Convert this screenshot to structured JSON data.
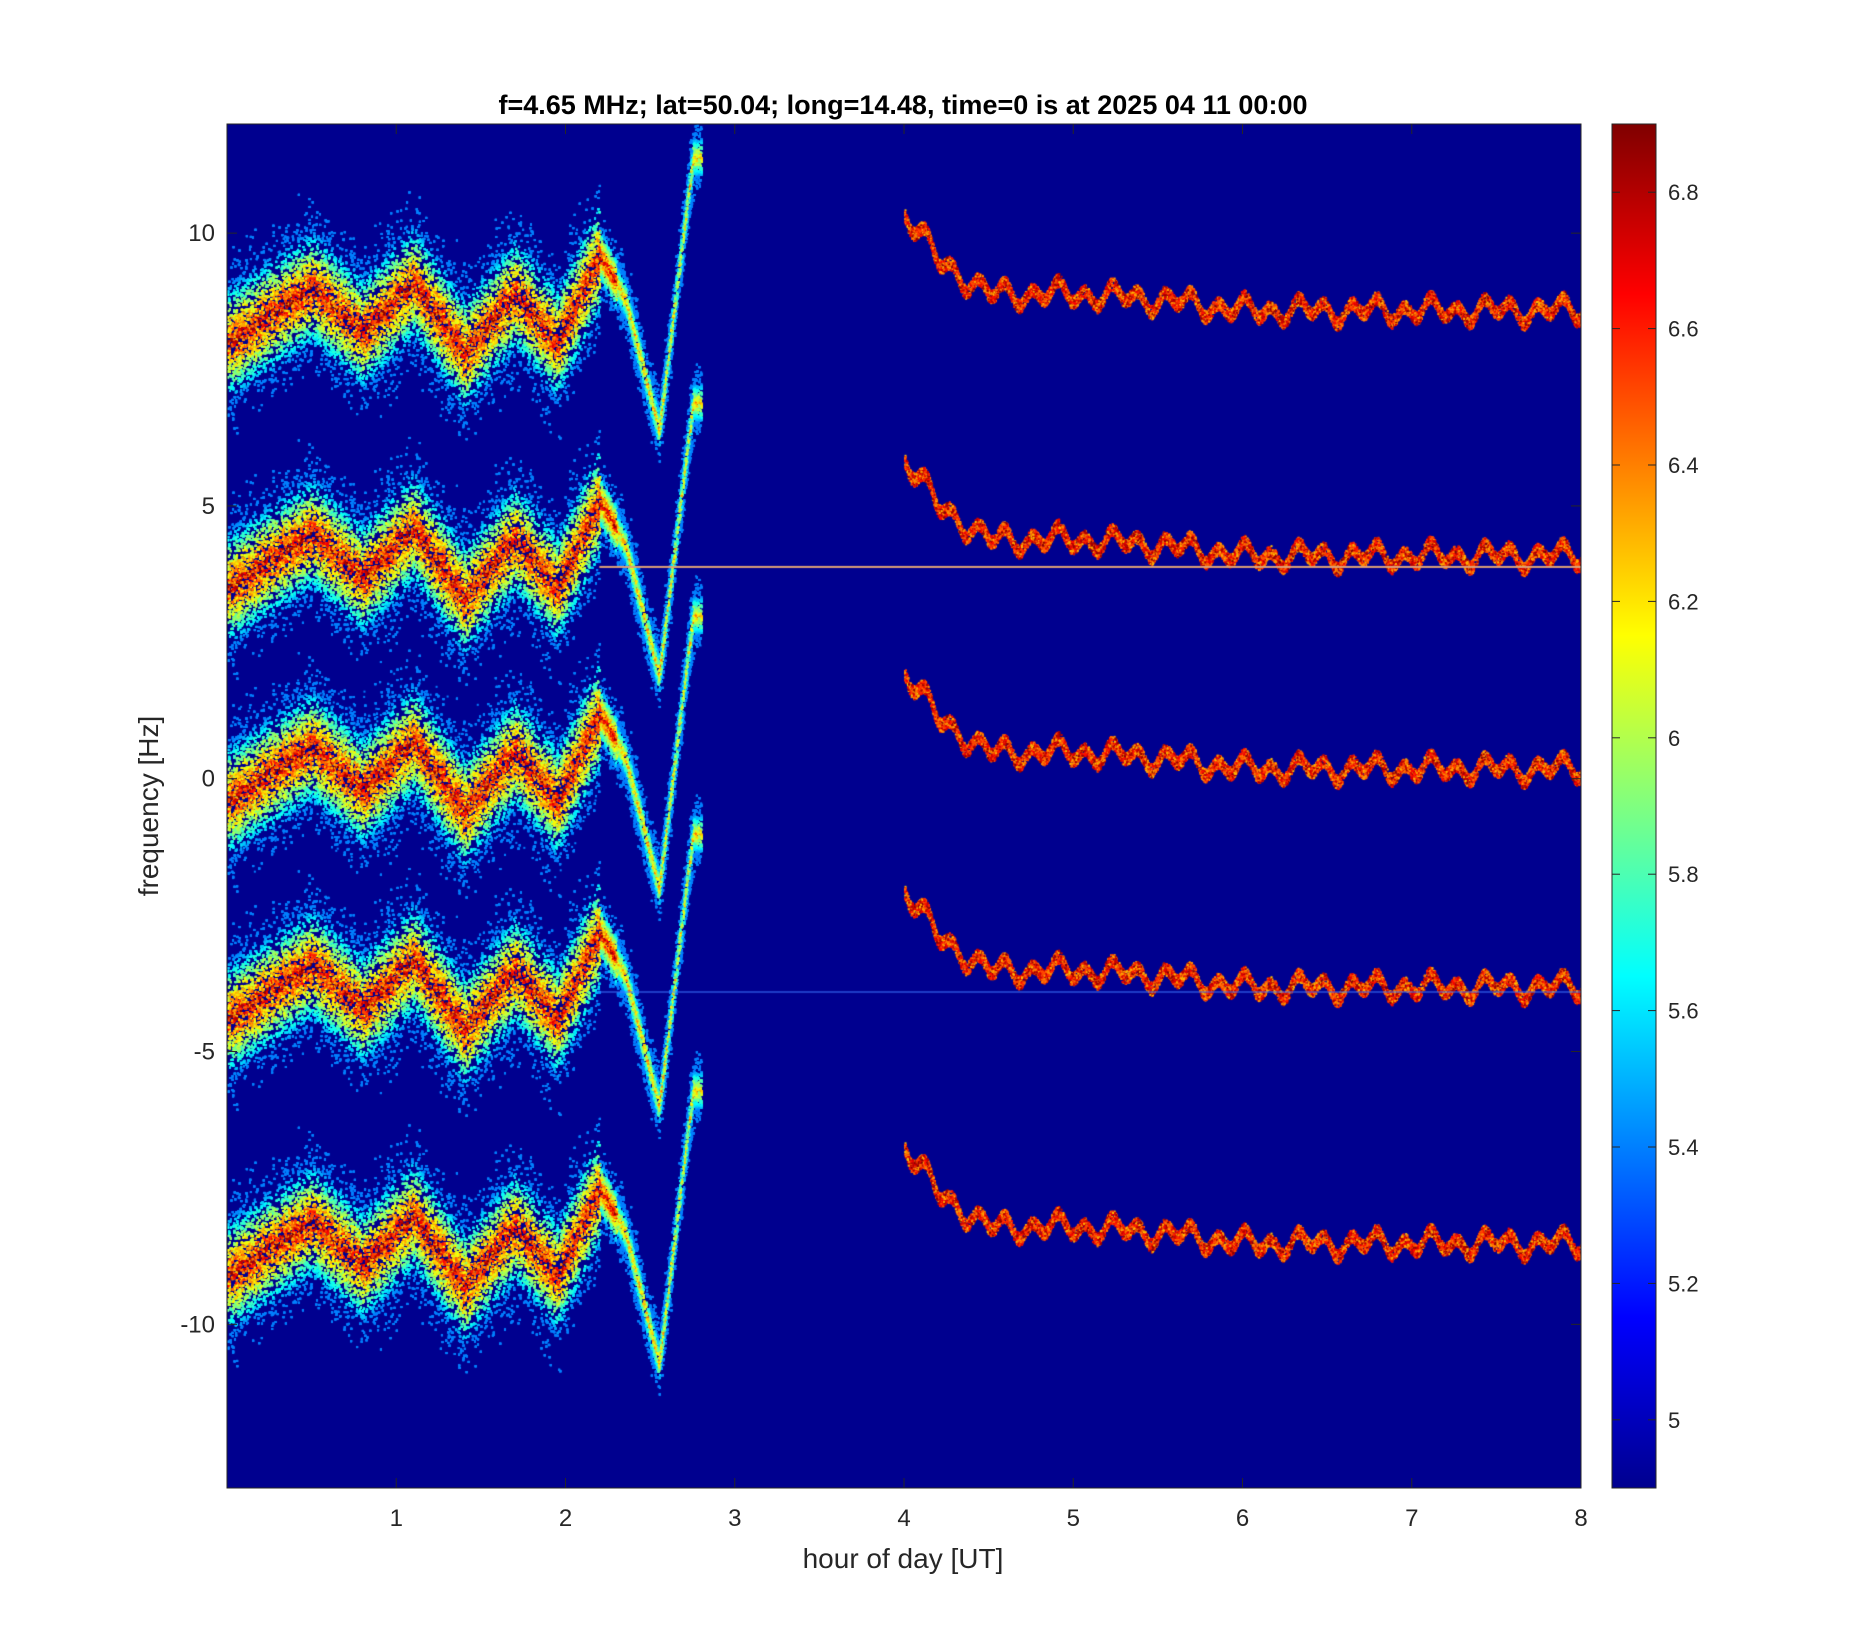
{
  "chart_data": {
    "type": "heatmap",
    "title": "f=4.65 MHz;  lat=50.04; long=14.48, time=0 is at 2025 04 11 00:00",
    "xlabel": "hour of day [UT]",
    "ylabel": "frequency [Hz]",
    "xlim": [
      0,
      8
    ],
    "ylim": [
      -13,
      12
    ],
    "xticks": [
      1,
      2,
      3,
      4,
      5,
      6,
      7,
      8
    ],
    "xtick_labels": [
      "1",
      "2",
      "3",
      "4",
      "5",
      "6",
      "7",
      "8"
    ],
    "yticks": [
      10,
      5,
      0,
      -5,
      -10
    ],
    "ytick_labels": [
      "10",
      "5",
      "0",
      "-5",
      "-10"
    ],
    "colormap": "jet",
    "background_color": "#00008f",
    "colorbar": {
      "limits": [
        4.9,
        6.9
      ],
      "ticks": [
        6.8,
        6.6,
        6.4,
        6.2,
        6,
        5.8,
        5.6,
        5.4,
        5.2,
        5
      ],
      "tick_labels": [
        "6.8",
        "6.6",
        "6.4",
        "6.2",
        "6",
        "5.8",
        "5.6",
        "5.4",
        "5.2",
        "5"
      ],
      "location": "right"
    },
    "bands": [
      {
        "center_offset": 0,
        "morning_trace": [
          [
            0,
            -0.4
          ],
          [
            0.5,
            0.6
          ],
          [
            0.8,
            -0.2
          ],
          [
            1.1,
            0.7
          ],
          [
            1.4,
            -0.6
          ],
          [
            1.7,
            0.5
          ],
          [
            1.95,
            -0.4
          ],
          [
            2.2,
            1.2
          ],
          [
            2.35,
            0.4
          ],
          [
            2.55,
            -2.0
          ],
          [
            2.75,
            3.0
          ]
        ],
        "afternoon_trace": [
          [
            4.0,
            2.0
          ],
          [
            4.2,
            1.1
          ],
          [
            4.5,
            0.5
          ],
          [
            5.0,
            0.5
          ],
          [
            5.5,
            0.4
          ],
          [
            6.0,
            0.2
          ],
          [
            7.0,
            0.2
          ],
          [
            8.0,
            0.2
          ]
        ]
      },
      {
        "center_offset": 8.4,
        "center_frequency": 8.4,
        "morning_end_frequency": 7.3,
        "afternoon_start_frequency": 10.8,
        "afternoon_end_frequency": 8.7
      },
      {
        "center_offset": 3.9,
        "center_frequency": 3.9,
        "afternoon_start_frequency": 6.0,
        "afternoon_end_frequency": 4.1
      },
      {
        "center_offset": -4.0,
        "center_frequency": -4.0,
        "afternoon_start_frequency": -2.2,
        "afternoon_end_frequency": -3.8
      },
      {
        "center_offset": -8.7,
        "center_frequency": -8.7,
        "afternoon_start_frequency": -7.5,
        "afternoon_end_frequency": -8.8
      }
    ],
    "carrier_lines": [
      3.9,
      -3.9
    ]
  }
}
